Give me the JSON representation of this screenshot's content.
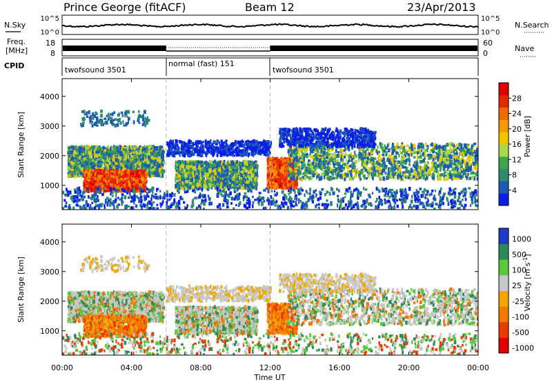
{
  "chart_data": {
    "type": "heatmap",
    "title": {
      "station": "Prince George (fitACF)",
      "beam": "Beam 12",
      "date": "23/Apr/2013"
    },
    "summary_panel": {
      "left_label": "N.Sky",
      "right_label": "N.Search",
      "left_ticks": [
        "10^5",
        "10^0"
      ],
      "right_ticks": [
        "10^5",
        "10^0"
      ]
    },
    "freq_panel": {
      "left_label_line1": "Freq.",
      "left_label_line2": "[MHz]",
      "left_ticks": [
        "18",
        "8"
      ],
      "right_label": "Nave",
      "right_ticks": [
        "60",
        "0"
      ]
    },
    "cpid_panel": {
      "label": "CPID",
      "segments": [
        {
          "name": "twofsound 3501",
          "start_hour": 0,
          "end_hour": 6
        },
        {
          "name": "normal (fast) 151",
          "start_hour": 6,
          "end_hour": 12
        },
        {
          "name": "twofsound 3501",
          "start_hour": 12,
          "end_hour": 24
        }
      ]
    },
    "power_panel": {
      "ylabel": "Slant Range [km]",
      "yticks": [
        1000,
        2000,
        3000,
        4000
      ],
      "ylim": [
        180,
        4600
      ],
      "colorbar_label": "Power [dB]",
      "colorbar_ticks": [
        4,
        8,
        12,
        16,
        20,
        24,
        28
      ],
      "colorbar_range": [
        0,
        32
      ],
      "colorbar_colors": [
        "#0a1ee6",
        "#1c5ab4",
        "#2f8a6e",
        "#3ea64a",
        "#a8d84b",
        "#f2c400",
        "#f49a00",
        "#ef6a00",
        "#e62800",
        "#e00000"
      ]
    },
    "velocity_panel": {
      "ylabel": "Slant Range [km]",
      "yticks": [
        1000,
        2000,
        3000,
        4000
      ],
      "ylim": [
        180,
        4600
      ],
      "colorbar_label": "Velocity [m s",
      "colorbar_label_sup": "-1",
      "colorbar_label_end": "]",
      "colorbar_ticks": [
        "1000",
        "500",
        "100",
        "25",
        "-25",
        "-100",
        "-500",
        "-1000"
      ],
      "colorbar_colors": [
        "#1e3cc8",
        "#2f8a5a",
        "#5cc83c",
        "#c8c8c8",
        "#f0a800",
        "#f27800",
        "#e83c00",
        "#e00000"
      ]
    },
    "x_axis": {
      "label": "Time UT",
      "ticks": [
        "00:00",
        "04:00",
        "08:00",
        "12:00",
        "16:00",
        "20:00",
        "00:00"
      ],
      "range_hours": [
        0,
        24
      ]
    },
    "scatter_bands": [
      {
        "t0": 0.3,
        "t1": 5.8,
        "r0": 1300,
        "r1": 2300,
        "kind": "core"
      },
      {
        "t0": 1.2,
        "t1": 4.8,
        "r0": 800,
        "r1": 1500,
        "kind": "strong"
      },
      {
        "t0": 6.5,
        "t1": 11.2,
        "r0": 900,
        "r1": 1800,
        "kind": "core"
      },
      {
        "t0": 6.0,
        "t1": 12.0,
        "r0": 2000,
        "r1": 2500,
        "kind": "weak"
      },
      {
        "t0": 11.8,
        "t1": 13.5,
        "r0": 900,
        "r1": 1900,
        "kind": "strong"
      },
      {
        "t0": 13.0,
        "t1": 24.0,
        "r0": 1200,
        "r1": 2400,
        "kind": "core"
      },
      {
        "t0": 12.5,
        "t1": 18.0,
        "r0": 2300,
        "r1": 2900,
        "kind": "weak"
      },
      {
        "t0": 0.0,
        "t1": 24.0,
        "r0": 200,
        "r1": 900,
        "kind": "noise"
      },
      {
        "t0": 1.0,
        "t1": 5.0,
        "r0": 3000,
        "r1": 3500,
        "kind": "sparse"
      }
    ]
  }
}
